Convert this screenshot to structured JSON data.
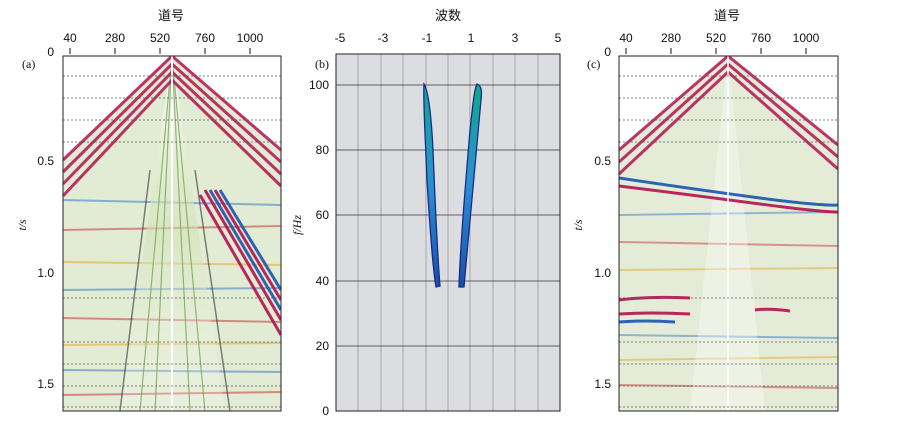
{
  "figure": {
    "panels": [
      {
        "id": "a",
        "label": "(a)",
        "top_axis_title": "道号",
        "top_ticks": [
          "40",
          "280",
          "520",
          "760",
          "1000"
        ],
        "left_axis_label": "t/s",
        "left_ticks": [
          "0",
          "0.5",
          "1.0",
          "1.5"
        ]
      },
      {
        "id": "b",
        "label": "(b)",
        "top_axis_title": "波数",
        "top_ticks": [
          "-5",
          "-3",
          "-1",
          "1",
          "3",
          "5"
        ],
        "left_axis_label": "f/Hz",
        "left_ticks": [
          "0",
          "20",
          "40",
          "60",
          "80",
          "100"
        ]
      },
      {
        "id": "c",
        "label": "(c)",
        "top_axis_title": "道号",
        "top_ticks": [
          "40",
          "280",
          "520",
          "760",
          "1000"
        ],
        "left_axis_label": "t/s",
        "left_ticks": [
          "0",
          "0.5",
          "1.0",
          "1.5"
        ]
      }
    ]
  },
  "colors": {
    "seismic_bg": "#dfe9cf",
    "event_red": "#b3124f",
    "event_blue": "#1a55b0",
    "fk_bg": "#dcdde0",
    "fk_fill": "#1c80c4",
    "fk_edge": "#1a2a8c"
  }
}
